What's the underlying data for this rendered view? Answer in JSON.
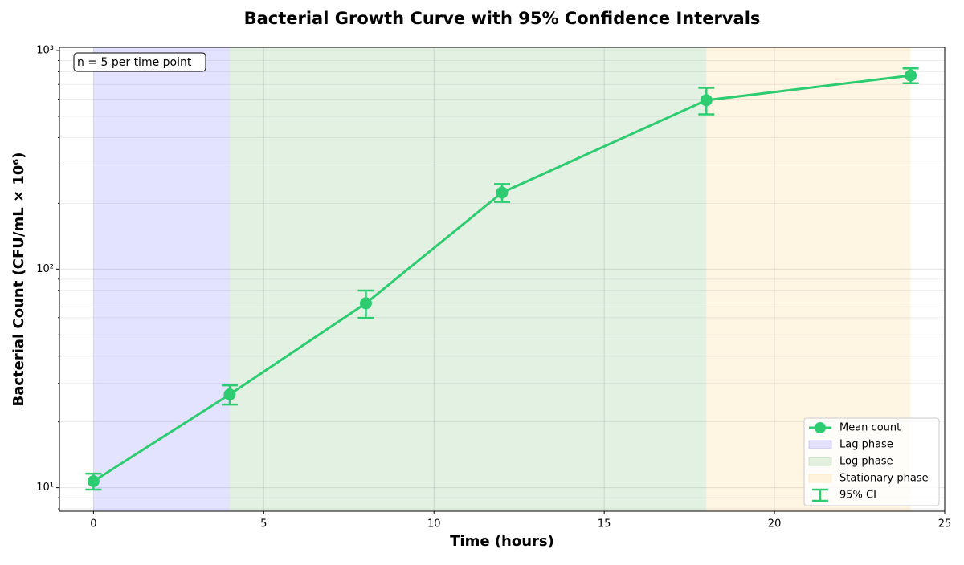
{
  "chart_data": {
    "type": "line",
    "title": "Bacterial Growth Curve with 95% Confidence Intervals",
    "xlabel": "Time (hours)",
    "ylabel": "Bacterial Count (CFU/mL × 10⁶)",
    "annotation": "n = 5 per time point",
    "x": [
      0,
      4,
      8,
      12,
      18,
      24
    ],
    "series": [
      {
        "name": "Mean count",
        "color": "#2ecc71",
        "values": [
          10.7,
          26.7,
          69.8,
          224,
          593,
          769
        ],
        "errors": [
          0.9,
          2.7,
          10,
          21,
          82,
          60
        ]
      }
    ],
    "error_label": "95% CI",
    "phases": [
      {
        "name": "Lag phase",
        "start": 0,
        "end": 4,
        "color": "#0000ff"
      },
      {
        "name": "Log phase",
        "start": 4,
        "end": 18,
        "color": "#008000"
      },
      {
        "name": "Stationary phase",
        "start": 18,
        "end": 24,
        "color": "#ffa500"
      }
    ],
    "xlim": [
      -1,
      25
    ],
    "xticks": [
      0,
      5,
      10,
      15,
      20,
      25
    ],
    "ylim": [
      7.8,
      1035
    ],
    "log_y": true,
    "yticks": [
      {
        "value": 10,
        "label": "10¹"
      },
      {
        "value": 100,
        "label": "10²"
      },
      {
        "value": 1000,
        "label": "10³"
      }
    ],
    "minor_yticks": [
      8,
      9,
      20,
      30,
      40,
      50,
      60,
      70,
      80,
      90,
      200,
      300,
      400,
      500,
      600,
      700,
      800,
      900
    ],
    "grid": true,
    "legend": "lower right"
  }
}
